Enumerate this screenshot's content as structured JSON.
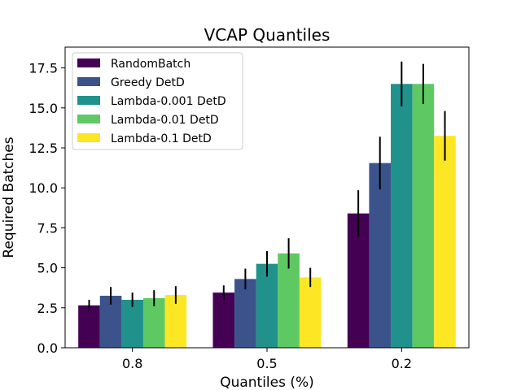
{
  "chart_data": {
    "type": "bar",
    "title": "VCAP Quantiles",
    "xlabel": "Quantiles (%)",
    "ylabel": "Required Batches",
    "ylim": [
      0,
      18.8
    ],
    "yticks": [
      0.0,
      2.5,
      5.0,
      7.5,
      10.0,
      12.5,
      15.0,
      17.5
    ],
    "ytick_labels": [
      "0.0",
      "2.5",
      "5.0",
      "7.5",
      "10.0",
      "12.5",
      "15.0",
      "17.5"
    ],
    "categories": [
      "0.8",
      "0.5",
      "0.2"
    ],
    "grid": false,
    "legend_position": "top-left",
    "series": [
      {
        "name": "RandomBatch",
        "color": "#440154",
        "values": [
          2.65,
          3.45,
          8.4
        ],
        "errors": [
          0.35,
          0.45,
          1.45
        ]
      },
      {
        "name": "Greedy DetD",
        "color": "#3b528b",
        "values": [
          3.25,
          4.3,
          11.55
        ],
        "errors": [
          0.55,
          0.65,
          1.65
        ]
      },
      {
        "name": "Lambda-0.001 DetD",
        "color": "#21918c",
        "values": [
          3.0,
          5.25,
          16.5
        ],
        "errors": [
          0.45,
          0.8,
          1.4
        ]
      },
      {
        "name": "Lambda-0.01 DetD",
        "color": "#5ec962",
        "values": [
          3.1,
          5.9,
          16.5
        ],
        "errors": [
          0.5,
          0.95,
          1.25
        ]
      },
      {
        "name": "Lambda-0.1 DetD",
        "color": "#fde725",
        "values": [
          3.3,
          4.4,
          13.25
        ],
        "errors": [
          0.55,
          0.6,
          1.55
        ]
      }
    ]
  }
}
